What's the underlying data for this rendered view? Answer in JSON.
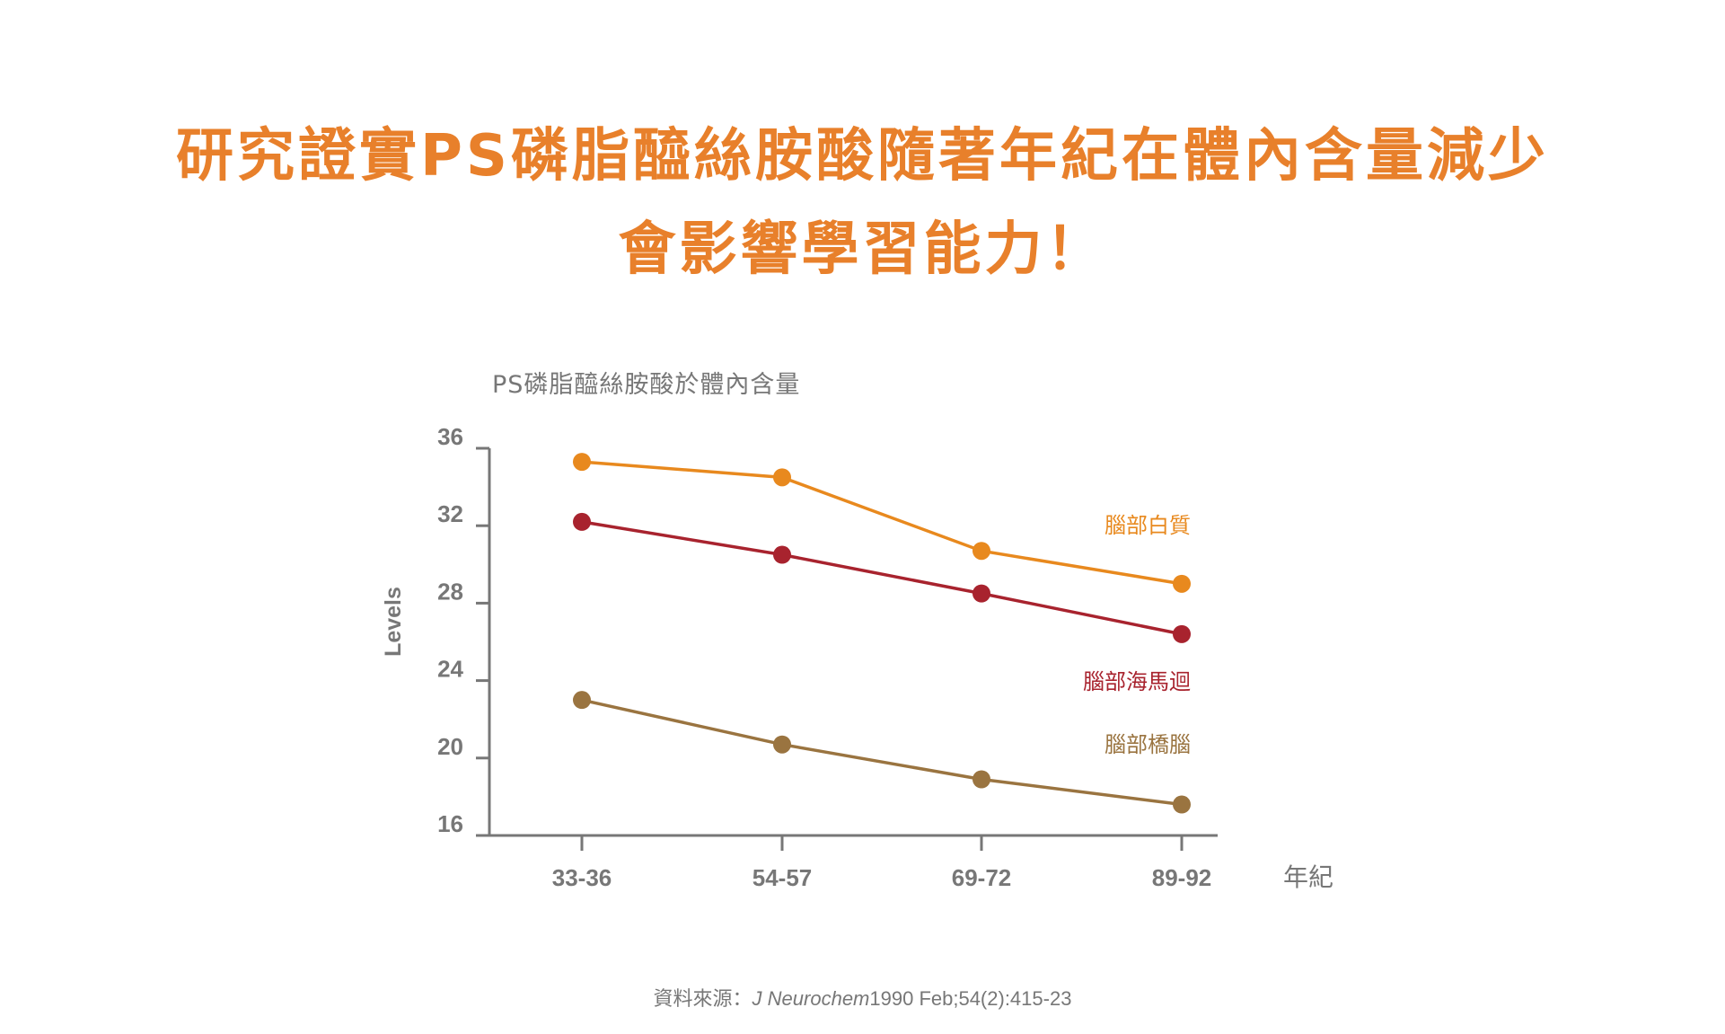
{
  "header": {
    "title_line1": "研究證實PS磷脂醯絲胺酸隨著年紀在體內含量減少",
    "title_line2": "會影響學習能力！"
  },
  "chart_data": {
    "type": "line",
    "title": "PS磷脂醯絲胺酸於體內含量",
    "xlabel": "年紀",
    "ylabel": "Levels",
    "categories": [
      "33-36",
      "54-57",
      "69-72",
      "89-92"
    ],
    "ylim": [
      16,
      36
    ],
    "yticks": [
      16,
      20,
      24,
      28,
      32,
      36
    ],
    "grid": false,
    "series": [
      {
        "name": "腦部白質",
        "color": "#E8891E",
        "values": [
          35.3,
          34.5,
          30.7,
          29.0
        ]
      },
      {
        "name": "腦部海馬迴",
        "color": "#A8232E",
        "values": [
          32.2,
          30.5,
          28.5,
          26.4
        ]
      },
      {
        "name": "腦部橋腦",
        "color": "#9A7440",
        "values": [
          23.0,
          20.7,
          18.9,
          17.6
        ]
      }
    ]
  },
  "source": {
    "label": "資料來源：",
    "journal": "J Neurochem",
    "citation": "1990 Feb;54(2):415-23"
  }
}
